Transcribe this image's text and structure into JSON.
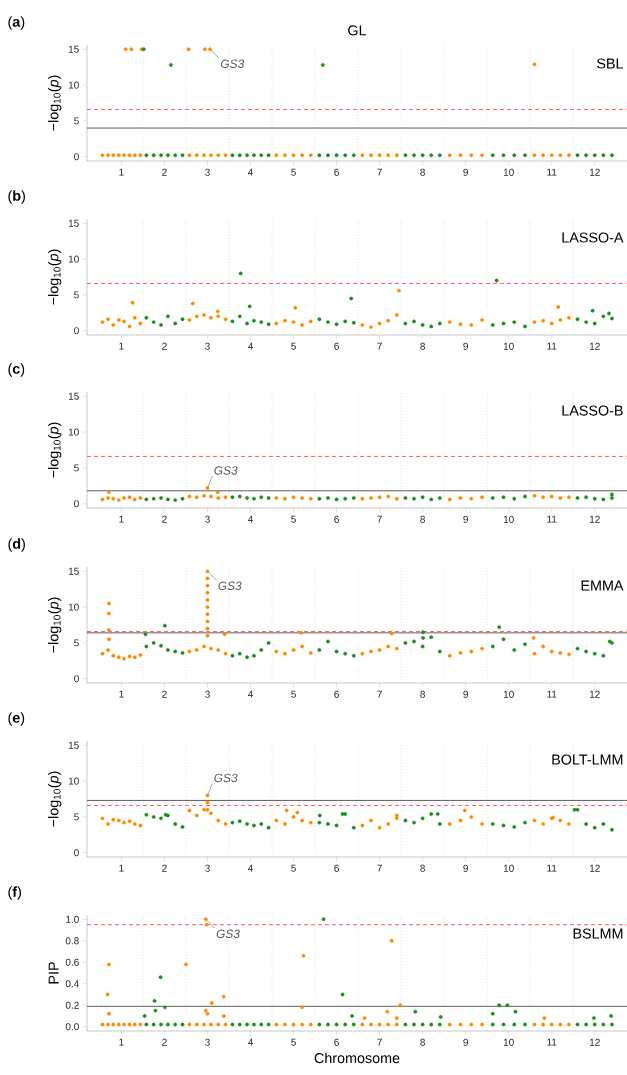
{
  "chart_data": [
    {
      "type": "scatter",
      "title": "GL",
      "ylabel": "−log$_{10}$(*p*)",
      "xlim": [
        0.2,
        12.75
      ],
      "ylim": [
        -0.6,
        15.6
      ],
      "xticks": [
        1,
        2,
        3,
        4,
        5,
        6,
        7,
        8,
        9,
        10,
        11,
        12
      ],
      "yticks": [
        0,
        5,
        10,
        15
      ],
      "series": [
        {
          "color": "#ff8c00",
          "x": [
            0.56,
            0.69,
            0.81,
            0.94,
            1.06,
            1.19,
            1.31,
            1.44,
            2.58,
            2.75,
            2.92,
            3.08,
            3.25,
            3.42,
            4.6,
            4.8,
            5,
            5.2,
            5.4,
            6.6,
            6.8,
            7,
            7.2,
            7.4,
            8.63,
            8.88,
            9.13,
            9.38,
            10.6,
            10.8,
            11,
            11.2,
            11.4,
            1.1,
            1.23,
            1.47,
            2.56,
            2.94,
            3.06,
            10.6
          ],
          "values": [
            0.2,
            0.2,
            0.2,
            0.2,
            0.2,
            0.2,
            0.2,
            0.2,
            0.2,
            0.2,
            0.2,
            0.2,
            0.2,
            0.2,
            0.2,
            0.2,
            0.2,
            0.2,
            0.2,
            0.2,
            0.2,
            0.2,
            0.2,
            0.2,
            0.2,
            0.2,
            0.2,
            0.2,
            0.2,
            0.2,
            0.2,
            0.2,
            0.2,
            15,
            15,
            15,
            15,
            15,
            15,
            12.9
          ]
        },
        {
          "color": "#228b22",
          "x": [
            1.58,
            1.75,
            1.92,
            2.08,
            2.25,
            2.42,
            3.58,
            3.75,
            3.92,
            4.08,
            4.25,
            4.42,
            5.6,
            5.8,
            6,
            6.2,
            6.4,
            7.6,
            7.8,
            8,
            8.2,
            8.4,
            9.63,
            9.88,
            10.13,
            10.38,
            11.6,
            11.8,
            12,
            12.2,
            12.4,
            1.52,
            2.15,
            5.68
          ],
          "values": [
            0.2,
            0.2,
            0.2,
            0.2,
            0.2,
            0.2,
            0.2,
            0.2,
            0.2,
            0.2,
            0.2,
            0.2,
            0.2,
            0.2,
            0.2,
            0.2,
            0.2,
            0.2,
            0.2,
            0.2,
            0.2,
            0.2,
            0.2,
            0.2,
            0.2,
            0.2,
            0.2,
            0.2,
            0.2,
            0.2,
            0.2,
            15,
            12.8,
            12.8
          ]
        }
      ],
      "ref_lines": [
        {
          "axis": "x",
          "value": 1.5,
          "color": "#d9d9d9",
          "line_style": "dotted"
        },
        {
          "axis": "x",
          "value": 2.5,
          "color": "#d9d9d9",
          "line_style": "dotted"
        },
        {
          "axis": "x",
          "value": 3.5,
          "color": "#d9d9d9",
          "line_style": "dotted"
        },
        {
          "axis": "x",
          "value": 4.5,
          "color": "#d9d9d9",
          "line_style": "dotted"
        },
        {
          "axis": "x",
          "value": 5.5,
          "color": "#d9d9d9",
          "line_style": "dotted"
        },
        {
          "axis": "x",
          "value": 6.5,
          "color": "#d9d9d9",
          "line_style": "dotted"
        },
        {
          "axis": "x",
          "value": 7.5,
          "color": "#d9d9d9",
          "line_style": "dotted"
        },
        {
          "axis": "x",
          "value": 8.5,
          "color": "#d9d9d9",
          "line_style": "dotted"
        },
        {
          "axis": "x",
          "value": 9.5,
          "color": "#d9d9d9",
          "line_style": "dotted"
        },
        {
          "axis": "x",
          "value": 10.5,
          "color": "#d9d9d9",
          "line_style": "dotted"
        },
        {
          "axis": "x",
          "value": 11.5,
          "color": "#d9d9d9",
          "line_style": "dotted"
        },
        {
          "axis": "y",
          "value": 6.6,
          "color": "#ff4d4d",
          "line_style": "dashed"
        },
        {
          "axis": "y",
          "value": 4.0,
          "color": "#4d4d4d",
          "line_style": "solid"
        }
      ],
      "annotations": [
        "(**a**)",
        "SBL",
        {
          "text": "GS3",
          "x": 3.06,
          "y": 15
        }
      ]
    },
    {
      "type": "scatter",
      "ylabel": "−log$_{10}$(*p*)",
      "xlim": [
        0.2,
        12.75
      ],
      "ylim": [
        -0.6,
        15.6
      ],
      "xticks": [
        1,
        2,
        3,
        4,
        5,
        6,
        7,
        8,
        9,
        10,
        11,
        12
      ],
      "yticks": [
        0,
        5,
        10,
        15
      ],
      "series": [
        {
          "color": "#ff8c00",
          "x": [
            0.56,
            0.69,
            0.81,
            0.94,
            1.06,
            1.19,
            1.31,
            1.44,
            2.58,
            2.75,
            2.92,
            3.08,
            3.25,
            3.42,
            4.6,
            4.8,
            5,
            5.2,
            5.4,
            6.6,
            6.8,
            7,
            7.2,
            7.4,
            8.63,
            8.88,
            9.13,
            9.38,
            10.6,
            10.8,
            11,
            11.2,
            11.4,
            1.26,
            2.66,
            3.24,
            5.04,
            7.45,
            11.15
          ],
          "values": [
            1.2,
            1.6,
            0.8,
            1.5,
            1.3,
            0.6,
            1.8,
            1.0,
            1.5,
            2.0,
            2.2,
            1.8,
            2.0,
            1.6,
            1.0,
            1.4,
            1.2,
            0.8,
            1.3,
            0.8,
            0.5,
            1.0,
            1.4,
            2.2,
            1.2,
            0.9,
            0.8,
            1.5,
            1.2,
            1.4,
            1.0,
            1.5,
            1.8,
            3.9,
            3.8,
            2.7,
            3.2,
            5.6,
            3.3
          ]
        },
        {
          "color": "#228b22",
          "x": [
            1.58,
            1.75,
            1.92,
            2.08,
            2.25,
            2.42,
            3.58,
            3.75,
            3.92,
            4.08,
            4.25,
            4.42,
            5.6,
            5.8,
            6,
            6.2,
            6.4,
            7.6,
            7.8,
            8,
            8.2,
            8.4,
            9.63,
            9.88,
            10.13,
            10.38,
            11.6,
            11.8,
            12,
            12.2,
            12.4,
            3.77,
            3.98,
            6.34,
            9.72,
            11.95,
            12.33
          ],
          "values": [
            1.8,
            1.2,
            0.8,
            2.0,
            1.0,
            1.6,
            1.3,
            2.0,
            1.0,
            1.4,
            1.2,
            0.9,
            1.6,
            1.2,
            0.9,
            1.3,
            1.1,
            1.0,
            1.3,
            0.8,
            0.6,
            1.0,
            0.8,
            1.0,
            1.2,
            0.6,
            1.6,
            1.2,
            1.0,
            2.0,
            1.7,
            8.0,
            3.4,
            4.5,
            7.0,
            2.8,
            2.4
          ]
        }
      ],
      "ref_lines": [
        {
          "axis": "x",
          "value": 1.5,
          "color": "#d9d9d9",
          "line_style": "dotted"
        },
        {
          "axis": "x",
          "value": 2.5,
          "color": "#d9d9d9",
          "line_style": "dotted"
        },
        {
          "axis": "x",
          "value": 3.5,
          "color": "#d9d9d9",
          "line_style": "dotted"
        },
        {
          "axis": "x",
          "value": 4.5,
          "color": "#d9d9d9",
          "line_style": "dotted"
        },
        {
          "axis": "x",
          "value": 5.5,
          "color": "#d9d9d9",
          "line_style": "dotted"
        },
        {
          "axis": "x",
          "value": 6.5,
          "color": "#d9d9d9",
          "line_style": "dotted"
        },
        {
          "axis": "x",
          "value": 7.5,
          "color": "#d9d9d9",
          "line_style": "dotted"
        },
        {
          "axis": "x",
          "value": 8.5,
          "color": "#d9d9d9",
          "line_style": "dotted"
        },
        {
          "axis": "x",
          "value": 9.5,
          "color": "#d9d9d9",
          "line_style": "dotted"
        },
        {
          "axis": "x",
          "value": 10.5,
          "color": "#d9d9d9",
          "line_style": "dotted"
        },
        {
          "axis": "x",
          "value": 11.5,
          "color": "#d9d9d9",
          "line_style": "dotted"
        },
        {
          "axis": "y",
          "value": 6.6,
          "color": "#ff4d4d",
          "line_style": "dashed"
        }
      ],
      "annotations": [
        "(**b**)",
        "LASSO-A"
      ]
    },
    {
      "type": "scatter",
      "ylabel": "−log$_{10}$(*p*)",
      "xlim": [
        0.2,
        12.75
      ],
      "ylim": [
        -0.6,
        15.6
      ],
      "xticks": [
        1,
        2,
        3,
        4,
        5,
        6,
        7,
        8,
        9,
        10,
        11,
        12
      ],
      "yticks": [
        0,
        5,
        10,
        15
      ],
      "series": [
        {
          "color": "#ff8c00",
          "x": [
            0.56,
            0.69,
            0.81,
            0.94,
            1.06,
            1.19,
            1.31,
            1.44,
            2.58,
            2.75,
            2.92,
            3.08,
            3.25,
            3.42,
            4.6,
            4.8,
            5,
            5.2,
            5.4,
            6.6,
            6.8,
            7,
            7.2,
            7.4,
            8.63,
            8.88,
            9.13,
            9.38,
            10.6,
            10.8,
            11,
            11.2,
            11.4,
            0.71,
            3.0,
            3.24
          ],
          "values": [
            0.6,
            0.8,
            0.7,
            0.5,
            0.8,
            0.9,
            0.6,
            0.8,
            1.0,
            0.9,
            1.1,
            1.0,
            0.8,
            0.9,
            0.8,
            0.7,
            0.9,
            0.8,
            0.7,
            0.7,
            0.8,
            0.9,
            1.0,
            0.7,
            0.6,
            0.8,
            0.7,
            0.9,
            1.1,
            0.9,
            1.0,
            0.8,
            0.9,
            1.6,
            2.2,
            1.6
          ]
        },
        {
          "color": "#228b22",
          "x": [
            1.58,
            1.75,
            1.92,
            2.08,
            2.25,
            2.42,
            3.58,
            3.75,
            3.92,
            4.08,
            4.25,
            4.42,
            5.6,
            5.8,
            6,
            6.2,
            6.4,
            7.6,
            7.8,
            8,
            8.2,
            8.4,
            9.63,
            9.88,
            10.13,
            10.38,
            11.6,
            11.8,
            12,
            12.2,
            12.4,
            12.4
          ],
          "values": [
            0.6,
            0.7,
            0.8,
            0.6,
            0.5,
            0.7,
            0.9,
            1.0,
            0.8,
            0.7,
            0.9,
            0.8,
            0.7,
            0.8,
            0.6,
            0.7,
            0.8,
            0.8,
            0.7,
            0.9,
            0.6,
            0.8,
            0.8,
            0.9,
            0.7,
            1.0,
            0.8,
            0.9,
            0.7,
            0.6,
            0.8,
            1.3
          ]
        }
      ],
      "ref_lines": [
        {
          "axis": "x",
          "value": 1.5,
          "color": "#d9d9d9",
          "line_style": "dotted"
        },
        {
          "axis": "x",
          "value": 2.5,
          "color": "#d9d9d9",
          "line_style": "dotted"
        },
        {
          "axis": "x",
          "value": 3.5,
          "color": "#d9d9d9",
          "line_style": "dotted"
        },
        {
          "axis": "x",
          "value": 4.5,
          "color": "#d9d9d9",
          "line_style": "dotted"
        },
        {
          "axis": "x",
          "value": 5.5,
          "color": "#d9d9d9",
          "line_style": "dotted"
        },
        {
          "axis": "x",
          "value": 6.5,
          "color": "#d9d9d9",
          "line_style": "dotted"
        },
        {
          "axis": "x",
          "value": 7.5,
          "color": "#d9d9d9",
          "line_style": "dotted"
        },
        {
          "axis": "x",
          "value": 8.5,
          "color": "#d9d9d9",
          "line_style": "dotted"
        },
        {
          "axis": "x",
          "value": 9.5,
          "color": "#d9d9d9",
          "line_style": "dotted"
        },
        {
          "axis": "x",
          "value": 10.5,
          "color": "#d9d9d9",
          "line_style": "dotted"
        },
        {
          "axis": "x",
          "value": 11.5,
          "color": "#d9d9d9",
          "line_style": "dotted"
        },
        {
          "axis": "y",
          "value": 6.6,
          "color": "#ff4d4d",
          "line_style": "dashed"
        },
        {
          "axis": "y",
          "value": 1.8,
          "color": "#4d4d4d",
          "line_style": "solid"
        }
      ],
      "annotations": [
        "(**c**)",
        "LASSO-B",
        {
          "text": "GS3",
          "x": 3.0,
          "y": 2.2
        }
      ]
    },
    {
      "type": "scatter",
      "ylabel": "−log$_{10}$(*p*)",
      "xlim": [
        0.2,
        12.75
      ],
      "ylim": [
        -0.6,
        15.6
      ],
      "xticks": [
        1,
        2,
        3,
        4,
        5,
        6,
        7,
        8,
        9,
        10,
        11,
        12
      ],
      "yticks": [
        0,
        5,
        10,
        15
      ],
      "series": [
        {
          "color": "#ff8c00",
          "x": [
            0.56,
            0.69,
            0.81,
            0.94,
            1.06,
            1.19,
            1.31,
            1.44,
            2.58,
            2.75,
            2.92,
            3.08,
            3.25,
            3.42,
            4.6,
            4.8,
            5,
            5.2,
            5.4,
            6.6,
            6.8,
            7,
            7.2,
            7.4,
            8.63,
            8.88,
            9.13,
            9.38,
            10.6,
            10.8,
            11,
            11.2,
            11.4,
            0.71,
            0.71,
            0.71,
            0.71,
            3.0,
            3.0,
            3.0,
            3.0,
            3.0,
            3.0,
            3.0,
            3.0,
            3.0,
            3.0,
            3.4,
            5.18,
            7.28,
            10.58
          ],
          "values": [
            3.5,
            4.0,
            3.2,
            3.0,
            2.8,
            3.1,
            3.0,
            3.3,
            3.8,
            4.0,
            4.5,
            4.2,
            4.0,
            3.5,
            3.8,
            3.5,
            4.0,
            4.5,
            3.6,
            3.5,
            3.8,
            4.0,
            4.5,
            4.2,
            3.2,
            3.6,
            3.8,
            4.2,
            3.5,
            4.5,
            3.8,
            3.6,
            3.4,
            10.5,
            9.1,
            6.8,
            5.5,
            15,
            14,
            13,
            12,
            11,
            10,
            9,
            8,
            7,
            6,
            6.2,
            6.4,
            6.3,
            5.7
          ]
        },
        {
          "color": "#228b22",
          "x": [
            1.58,
            1.75,
            1.92,
            2.08,
            2.25,
            2.42,
            3.58,
            3.75,
            3.92,
            4.08,
            4.25,
            4.42,
            5.6,
            5.8,
            6,
            6.2,
            6.4,
            7.6,
            7.8,
            8,
            8.2,
            8.4,
            9.63,
            9.88,
            10.13,
            10.38,
            11.6,
            11.8,
            12,
            12.2,
            12.4,
            1.56,
            2.01,
            8.01,
            8.01,
            9.78,
            12.35
          ],
          "values": [
            4.5,
            5.0,
            4.6,
            4.0,
            3.8,
            3.6,
            3.2,
            3.5,
            3.0,
            3.2,
            4.0,
            5.0,
            4.0,
            5.2,
            3.8,
            3.5,
            3.2,
            5.0,
            5.2,
            4.5,
            5.8,
            3.8,
            4.5,
            5.5,
            4.0,
            4.8,
            4.2,
            3.8,
            3.5,
            3.2,
            5.0,
            6.2,
            7.4,
            6.5,
            5.7,
            7.2,
            5.2
          ]
        }
      ],
      "ref_lines": [
        {
          "axis": "x",
          "value": 1.5,
          "color": "#d9d9d9",
          "line_style": "dotted"
        },
        {
          "axis": "x",
          "value": 2.5,
          "color": "#d9d9d9",
          "line_style": "dotted"
        },
        {
          "axis": "x",
          "value": 3.5,
          "color": "#d9d9d9",
          "line_style": "dotted"
        },
        {
          "axis": "x",
          "value": 4.5,
          "color": "#d9d9d9",
          "line_style": "dotted"
        },
        {
          "axis": "x",
          "value": 5.5,
          "color": "#d9d9d9",
          "line_style": "dotted"
        },
        {
          "axis": "x",
          "value": 6.5,
          "color": "#d9d9d9",
          "line_style": "dotted"
        },
        {
          "axis": "x",
          "value": 7.5,
          "color": "#d9d9d9",
          "line_style": "dotted"
        },
        {
          "axis": "x",
          "value": 8.5,
          "color": "#d9d9d9",
          "line_style": "dotted"
        },
        {
          "axis": "x",
          "value": 9.5,
          "color": "#d9d9d9",
          "line_style": "dotted"
        },
        {
          "axis": "x",
          "value": 10.5,
          "color": "#d9d9d9",
          "line_style": "dotted"
        },
        {
          "axis": "x",
          "value": 11.5,
          "color": "#d9d9d9",
          "line_style": "dotted"
        },
        {
          "axis": "y",
          "value": 6.6,
          "color": "#ff4d4d",
          "line_style": "dashed"
        },
        {
          "axis": "y",
          "value": 6.4,
          "color": "#4d4d4d",
          "line_style": "solid"
        }
      ],
      "annotations": [
        "(**d**)",
        "EMMA",
        {
          "text": "GS3",
          "x": 3.0,
          "y": 15
        }
      ]
    },
    {
      "type": "scatter",
      "ylabel": "−log$_{10}$(*p*)",
      "xlim": [
        0.2,
        12.75
      ],
      "ylim": [
        -0.6,
        15.6
      ],
      "xticks": [
        1,
        2,
        3,
        4,
        5,
        6,
        7,
        8,
        9,
        10,
        11,
        12
      ],
      "yticks": [
        0,
        5,
        10,
        15
      ],
      "series": [
        {
          "color": "#ff8c00",
          "x": [
            0.56,
            0.69,
            0.81,
            0.94,
            1.06,
            1.19,
            1.31,
            1.44,
            2.58,
            2.75,
            2.92,
            3.08,
            3.25,
            3.42,
            4.6,
            4.8,
            5,
            5.2,
            5.4,
            6.6,
            6.8,
            7,
            7.2,
            7.4,
            8.63,
            8.88,
            9.13,
            9.38,
            10.6,
            10.8,
            11,
            11.2,
            11.4,
            3.0,
            3.0,
            3.0,
            4.84,
            5.09,
            7.4,
            8.98,
            11.03
          ],
          "values": [
            4.8,
            4.0,
            4.6,
            4.5,
            4.2,
            4.4,
            4.0,
            3.8,
            5.9,
            5.2,
            6.0,
            5.5,
            4.5,
            4.0,
            4.5,
            4.0,
            5.0,
            4.5,
            4.2,
            3.8,
            4.5,
            3.5,
            4.0,
            4.8,
            4.0,
            4.5,
            5.0,
            4.0,
            4.5,
            4.0,
            4.8,
            4.5,
            4.0,
            8.0,
            7.0,
            6.0,
            5.9,
            5.6,
            5.2,
            5.9,
            4.9
          ]
        },
        {
          "color": "#228b22",
          "x": [
            1.58,
            1.75,
            1.92,
            2.08,
            2.25,
            2.42,
            3.58,
            3.75,
            3.92,
            4.08,
            4.25,
            4.42,
            5.6,
            5.8,
            6,
            6.2,
            6.4,
            7.6,
            7.8,
            8,
            8.2,
            8.4,
            9.63,
            9.88,
            10.13,
            10.38,
            11.6,
            11.8,
            12,
            12.2,
            12.4,
            2.03,
            5.61,
            6.14,
            8.35,
            11.53
          ],
          "values": [
            5.3,
            5.0,
            4.8,
            5.2,
            4.0,
            3.6,
            4.2,
            4.4,
            4.0,
            3.8,
            4.0,
            3.5,
            4.2,
            4.0,
            3.8,
            5.4,
            3.5,
            4.5,
            4.2,
            4.8,
            5.4,
            4.0,
            4.0,
            3.8,
            3.6,
            4.2,
            6.0,
            4.0,
            3.5,
            4.0,
            3.2,
            5.3,
            5.2,
            5.4,
            5.4,
            6.0
          ]
        }
      ],
      "ref_lines": [
        {
          "axis": "x",
          "value": 1.5,
          "color": "#d9d9d9",
          "line_style": "dotted"
        },
        {
          "axis": "x",
          "value": 2.5,
          "color": "#d9d9d9",
          "line_style": "dotted"
        },
        {
          "axis": "x",
          "value": 3.5,
          "color": "#d9d9d9",
          "line_style": "dotted"
        },
        {
          "axis": "x",
          "value": 4.5,
          "color": "#d9d9d9",
          "line_style": "dotted"
        },
        {
          "axis": "x",
          "value": 5.5,
          "color": "#d9d9d9",
          "line_style": "dotted"
        },
        {
          "axis": "x",
          "value": 6.5,
          "color": "#d9d9d9",
          "line_style": "dotted"
        },
        {
          "axis": "x",
          "value": 7.5,
          "color": "#d9d9d9",
          "line_style": "dotted"
        },
        {
          "axis": "x",
          "value": 8.5,
          "color": "#d9d9d9",
          "line_style": "dotted"
        },
        {
          "axis": "x",
          "value": 9.5,
          "color": "#d9d9d9",
          "line_style": "dotted"
        },
        {
          "axis": "x",
          "value": 10.5,
          "color": "#d9d9d9",
          "line_style": "dotted"
        },
        {
          "axis": "x",
          "value": 11.5,
          "color": "#d9d9d9",
          "line_style": "dotted"
        },
        {
          "axis": "y",
          "value": 6.6,
          "color": "#ff4d4d",
          "line_style": "dashed"
        },
        {
          "axis": "y",
          "value": 7.3,
          "color": "#4d4d4d",
          "line_style": "solid"
        }
      ],
      "annotations": [
        "(**e**)",
        "BOLT-LMM",
        {
          "text": "GS3",
          "x": 3.0,
          "y": 8.0
        }
      ]
    },
    {
      "type": "scatter",
      "ylabel": "PIP",
      "xlabel": "Chromosome",
      "xlim": [
        0.2,
        12.75
      ],
      "ylim": [
        -0.04,
        1.04
      ],
      "xticks": [
        1,
        2,
        3,
        4,
        5,
        6,
        7,
        8,
        9,
        10,
        11,
        12
      ],
      "yticks": [
        {
          "value": 0,
          "label": "0.0"
        },
        {
          "value": 0.2,
          "label": "0.2"
        },
        {
          "value": 0.4,
          "label": "0.4"
        },
        {
          "value": 0.6,
          "label": "0.6"
        },
        {
          "value": 0.8,
          "label": "0.8"
        },
        {
          "value": 1,
          "label": "1.0"
        }
      ],
      "series": [
        {
          "color": "#ff8c00",
          "x": [
            0.56,
            0.69,
            0.81,
            0.94,
            1.06,
            1.19,
            1.31,
            1.44,
            2.58,
            2.75,
            2.92,
            3.08,
            3.25,
            3.42,
            4.6,
            4.8,
            5,
            5.2,
            5.4,
            6.6,
            6.8,
            7,
            7.2,
            7.4,
            8.63,
            8.88,
            9.13,
            9.38,
            10.6,
            10.8,
            11,
            11.2,
            11.4,
            0.71,
            0.68,
            0.71,
            2.5,
            2.96,
            2.98,
            2.96,
            3.0,
            3.1,
            3.38,
            3.38,
            5.23,
            5.2,
            6.65,
            7.18,
            7.28,
            7.48,
            7.4,
            10.83
          ],
          "values": [
            0.02,
            0.02,
            0.02,
            0.02,
            0.02,
            0.02,
            0.02,
            0.02,
            0.02,
            0.02,
            0.02,
            0.02,
            0.02,
            0.02,
            0.02,
            0.02,
            0.02,
            0.02,
            0.02,
            0.02,
            0.02,
            0.02,
            0.02,
            0.02,
            0.02,
            0.02,
            0.02,
            0.02,
            0.02,
            0.02,
            0.02,
            0.02,
            0.02,
            0.58,
            0.3,
            0.12,
            0.58,
            1.0,
            0.95,
            0.15,
            0.12,
            0.22,
            0.28,
            0.1,
            0.66,
            0.18,
            0.08,
            0.14,
            0.8,
            0.2,
            0.08,
            0.08
          ]
        },
        {
          "color": "#228b22",
          "x": [
            1.58,
            1.75,
            1.92,
            2.08,
            2.25,
            2.42,
            3.58,
            3.75,
            3.92,
            4.08,
            4.25,
            4.42,
            5.6,
            5.8,
            6,
            6.2,
            6.4,
            7.6,
            7.8,
            8,
            8.2,
            8.4,
            9.63,
            9.88,
            10.13,
            10.38,
            11.6,
            11.8,
            12,
            12.2,
            12.4,
            1.54,
            1.77,
            1.79,
            1.91,
            2.01,
            5.7,
            6.14,
            6.36,
            7.83,
            8.42,
            9.63,
            9.78,
            9.97,
            10.16,
            11.98,
            12.38
          ],
          "values": [
            0.02,
            0.02,
            0.02,
            0.02,
            0.02,
            0.02,
            0.02,
            0.02,
            0.02,
            0.02,
            0.02,
            0.02,
            0.02,
            0.02,
            0.02,
            0.02,
            0.02,
            0.02,
            0.02,
            0.02,
            0.02,
            0.02,
            0.02,
            0.02,
            0.02,
            0.02,
            0.02,
            0.02,
            0.02,
            0.02,
            0.02,
            0.1,
            0.24,
            0.15,
            0.46,
            0.18,
            1.0,
            0.3,
            0.1,
            0.14,
            0.09,
            0.12,
            0.2,
            0.2,
            0.14,
            0.08,
            0.1
          ]
        }
      ],
      "ref_lines": [
        {
          "axis": "x",
          "value": 1.5,
          "color": "#d9d9d9",
          "line_style": "dotted"
        },
        {
          "axis": "x",
          "value": 2.5,
          "color": "#d9d9d9",
          "line_style": "dotted"
        },
        {
          "axis": "x",
          "value": 3.5,
          "color": "#d9d9d9",
          "line_style": "dotted"
        },
        {
          "axis": "x",
          "value": 4.5,
          "color": "#d9d9d9",
          "line_style": "dotted"
        },
        {
          "axis": "x",
          "value": 5.5,
          "color": "#d9d9d9",
          "line_style": "dotted"
        },
        {
          "axis": "x",
          "value": 6.5,
          "color": "#d9d9d9",
          "line_style": "dotted"
        },
        {
          "axis": "x",
          "value": 7.5,
          "color": "#d9d9d9",
          "line_style": "dotted"
        },
        {
          "axis": "x",
          "value": 8.5,
          "color": "#d9d9d9",
          "line_style": "dotted"
        },
        {
          "axis": "x",
          "value": 9.5,
          "color": "#d9d9d9",
          "line_style": "dotted"
        },
        {
          "axis": "x",
          "value": 10.5,
          "color": "#d9d9d9",
          "line_style": "dotted"
        },
        {
          "axis": "x",
          "value": 11.5,
          "color": "#d9d9d9",
          "line_style": "dotted"
        },
        {
          "axis": "y",
          "value": 0.95,
          "color": "#ff4d4d",
          "line_style": "dashed"
        },
        {
          "axis": "y",
          "value": 0.19,
          "color": "#4d4d4d",
          "line_style": "solid"
        }
      ],
      "annotations": [
        "(**f**)",
        "BSLMM",
        {
          "text": "GS3",
          "x": 2.96,
          "y": 1.0
        }
      ]
    }
  ]
}
